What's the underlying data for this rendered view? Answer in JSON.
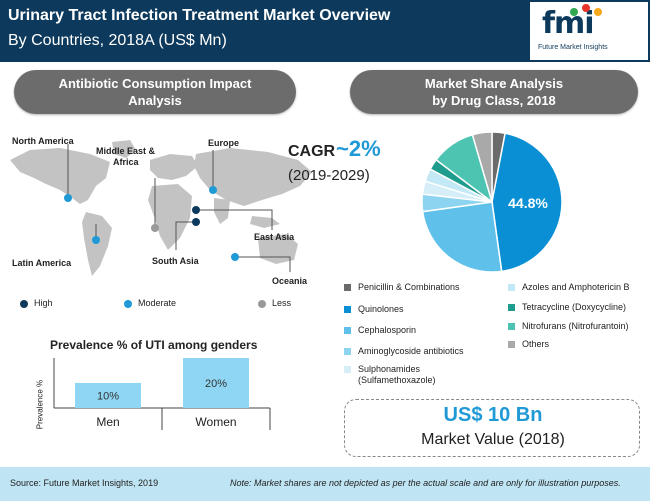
{
  "header": {
    "title": "Urinary Tract Infection Treatment Market Overview",
    "subtitle": "By Countries, 2018A (US$ Mn)",
    "logo_mark": "fmi",
    "logo_text": "Future Market Insights"
  },
  "impact_section": {
    "title_line1": "Antibiotic Consumption Impact",
    "title_line2": "Analysis",
    "regions": [
      {
        "name": "North America",
        "level": "Moderate"
      },
      {
        "name": "Middle East &",
        "name2": "Africa",
        "level": "Less"
      },
      {
        "name": "Europe",
        "level": "Moderate"
      },
      {
        "name": "East Asia",
        "level": "High"
      },
      {
        "name": "Latin America",
        "level": "Moderate"
      },
      {
        "name": "South Asia",
        "level": "High"
      },
      {
        "name": "Oceania",
        "level": "Moderate"
      }
    ],
    "legend": {
      "high": "High",
      "moderate": "Moderate",
      "less": "Less"
    },
    "colors": {
      "high": "#0d3a5c",
      "moderate": "#1f9ad6",
      "less": "#9a9a9a"
    }
  },
  "cagr": {
    "label": "CAGR",
    "value": "~2%",
    "period": "(2019-2029)"
  },
  "share_section": {
    "title_line1": "Market Share Analysis",
    "title_line2": "by Drug Class, 2018",
    "highlight_label": "44.8%"
  },
  "chart_data": [
    {
      "type": "pie",
      "title": "Market Share Analysis by Drug Class, 2018",
      "labels": [
        "Penicillin & Combinations",
        "Quinolones",
        "Cephalosporin",
        "Aminoglycoside antibiotics",
        "Sulphonamides (Sulfamethoxazole)",
        "Azoles and Amphotericin B",
        "Tetracycline (Doxycycline)",
        "Nitrofurans (Nitrofurantoin)",
        "Others"
      ],
      "values": [
        3.0,
        44.8,
        25.0,
        4.0,
        3.0,
        3.0,
        2.5,
        10.2,
        4.5
      ],
      "colors": [
        "#6b6b6b",
        "#0a8fd4",
        "#5fc0ea",
        "#8dd4f0",
        "#d6eef8",
        "#c3e8f6",
        "#1e9c8e",
        "#4dc4b2",
        "#a9a9a9"
      ]
    },
    {
      "type": "bar",
      "title": "Prevalence % of UTI among genders",
      "ylabel": "Prevalence %",
      "categories": [
        "Men",
        "Women"
      ],
      "values": [
        10,
        20
      ],
      "value_labels": [
        "10%",
        "20%"
      ],
      "color": "#8fd6f4"
    }
  ],
  "drug_legend": [
    {
      "label": "Penicillin & Combinations",
      "color": "#6b6b6b"
    },
    {
      "label": "Quinolones",
      "color": "#0a8fd4"
    },
    {
      "label": "Cephalosporin",
      "color": "#5fc0ea"
    },
    {
      "label": "Aminoglycoside antibiotics",
      "color": "#8dd4f0"
    },
    {
      "label": "Sulphonamides",
      "label2": "(Sulfamethoxazole)",
      "color": "#d6eef8"
    },
    {
      "label": "Azoles and Amphotericin B",
      "color": "#c3e8f6"
    },
    {
      "label": "Tetracycline (Doxycycline)",
      "color": "#1e9c8e"
    },
    {
      "label": "Nitrofurans (Nitrofurantoin)",
      "color": "#4dc4b2"
    },
    {
      "label": "Others",
      "color": "#a9a9a9"
    }
  ],
  "market_value": {
    "value": "US$ 10 Bn",
    "label": "Market Value (2018)"
  },
  "footer": {
    "source": "Source: Future Market Insights, 2019",
    "note": "Note: Market shares are not depicted as per the actual scale and are only for illustration purposes."
  }
}
